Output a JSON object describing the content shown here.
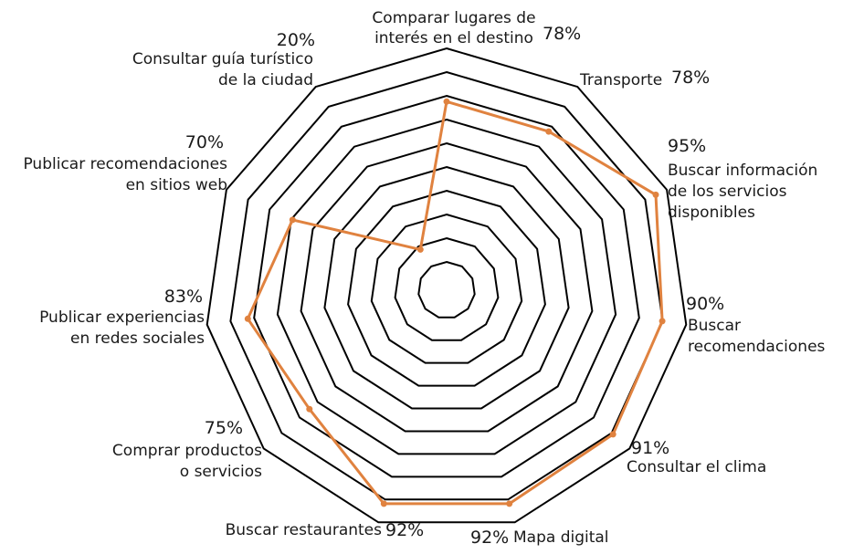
{
  "chart_data": {
    "type": "radar",
    "title": "",
    "scale": [
      0,
      100
    ],
    "ring_count": 10,
    "grid": true,
    "series": [
      {
        "color": "#E0823F",
        "values": [
          78,
          78,
          95,
          90,
          91,
          92,
          92,
          75,
          83,
          70,
          20
        ]
      }
    ],
    "categories": [
      {
        "label_lines": [
          "Comparar lugares de",
          "interés en el destino"
        ],
        "value_label": "78%"
      },
      {
        "label_lines": [
          "Transporte"
        ],
        "value_label": "78%"
      },
      {
        "label_lines": [
          "Buscar información",
          "de los servicios",
          "disponibles"
        ],
        "value_label": "95%"
      },
      {
        "label_lines": [
          "Buscar",
          "recomendaciones"
        ],
        "value_label": "90%"
      },
      {
        "label_lines": [
          "Consultar el clima"
        ],
        "value_label": "91%"
      },
      {
        "label_lines": [
          "Mapa digital"
        ],
        "value_label": "92%"
      },
      {
        "label_lines": [
          "Buscar restaurantes"
        ],
        "value_label": "92%"
      },
      {
        "label_lines": [
          "Comprar productos",
          "o servicios"
        ],
        "value_label": "75%"
      },
      {
        "label_lines": [
          "Publicar experiencias",
          "en redes sociales"
        ],
        "value_label": "83%"
      },
      {
        "label_lines": [
          "Publicar recomendaciones",
          "en sitios web"
        ],
        "value_label": "70%"
      },
      {
        "label_lines": [
          "Consultar guía turístico",
          "de la ciudad"
        ],
        "value_label": "20%"
      }
    ]
  }
}
